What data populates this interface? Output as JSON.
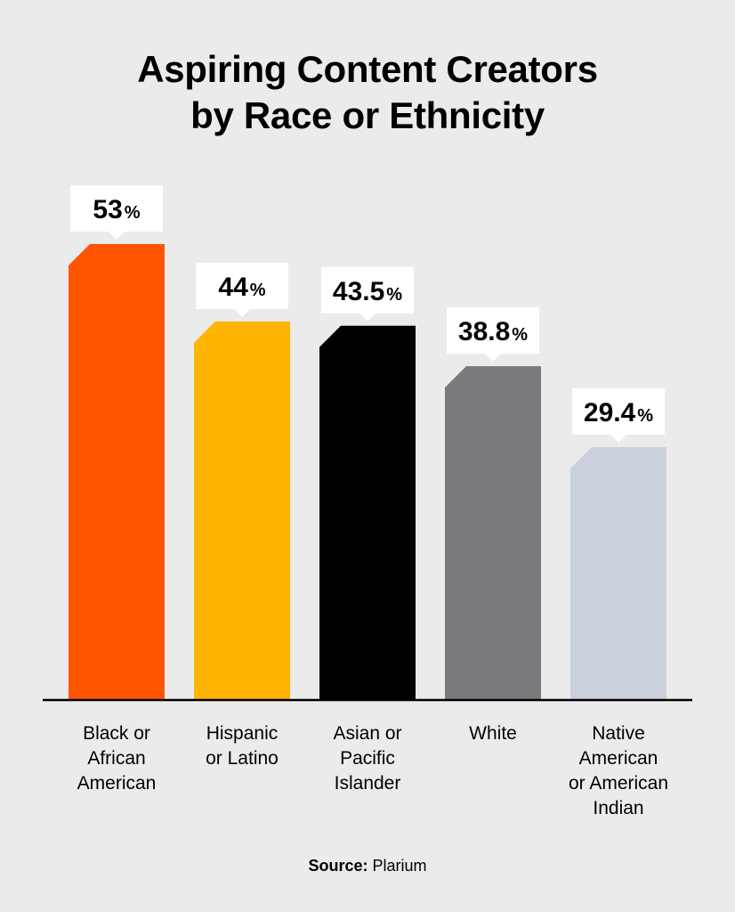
{
  "chart_data": {
    "type": "bar",
    "title_lines": [
      "Aspiring Content Creators",
      "by Race or Ethnicity"
    ],
    "categories": [
      [
        "Black or",
        "African",
        "American"
      ],
      [
        "Hispanic",
        "or Latino"
      ],
      [
        "Asian or",
        "Pacific",
        "Islander"
      ],
      [
        "White"
      ],
      [
        "Native",
        "American",
        "or American",
        "Indian"
      ]
    ],
    "values": [
      53,
      44,
      43.5,
      38.8,
      29.4
    ],
    "value_labels": [
      "53",
      "44",
      "43.5",
      "38.8",
      "29.4"
    ],
    "unit_suffix": "%",
    "colors": [
      "#ff5500",
      "#ffb400",
      "#000000",
      "#7a797e",
      "#cbd1dc"
    ],
    "ylim": [
      0,
      53
    ],
    "xlabel": "",
    "ylabel": "",
    "grid": false
  },
  "source": {
    "label": "Source:",
    "value": "Plarium"
  }
}
